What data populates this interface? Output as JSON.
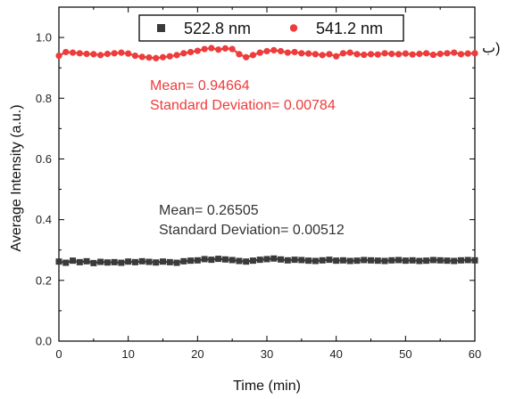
{
  "corner_label": "ب)",
  "chart_data": {
    "type": "scatter",
    "xlabel": "Time (min)",
    "ylabel": "Average Intensity (a.u.)",
    "xlim": [
      0,
      60
    ],
    "ylim": [
      0,
      1.1
    ],
    "xticks": [
      "0",
      "10",
      "20",
      "30",
      "40",
      "50",
      "60"
    ],
    "yticks": [
      "0.0",
      "0.2",
      "0.4",
      "0.6",
      "0.8",
      "1.0"
    ],
    "grid": false,
    "legend_position": "top-center",
    "series": [
      {
        "name": "522.8 nm",
        "marker": "square",
        "color": "#3a3a3a",
        "x": [
          0,
          1,
          2,
          3,
          4,
          5,
          6,
          7,
          8,
          9,
          10,
          11,
          12,
          13,
          14,
          15,
          16,
          17,
          18,
          19,
          20,
          21,
          22,
          23,
          24,
          25,
          26,
          27,
          28,
          29,
          30,
          31,
          32,
          33,
          34,
          35,
          36,
          37,
          38,
          39,
          40,
          41,
          42,
          43,
          44,
          45,
          46,
          47,
          48,
          49,
          50,
          51,
          52,
          53,
          54,
          55,
          56,
          57,
          58,
          59,
          60
        ],
        "y": [
          0.262,
          0.258,
          0.265,
          0.26,
          0.263,
          0.257,
          0.261,
          0.259,
          0.26,
          0.258,
          0.262,
          0.26,
          0.263,
          0.261,
          0.259,
          0.262,
          0.26,
          0.258,
          0.263,
          0.265,
          0.266,
          0.27,
          0.268,
          0.271,
          0.269,
          0.267,
          0.264,
          0.262,
          0.265,
          0.268,
          0.27,
          0.272,
          0.269,
          0.266,
          0.268,
          0.267,
          0.265,
          0.264,
          0.266,
          0.268,
          0.265,
          0.266,
          0.264,
          0.265,
          0.267,
          0.266,
          0.265,
          0.264,
          0.266,
          0.267,
          0.265,
          0.266,
          0.264,
          0.265,
          0.267,
          0.266,
          0.265,
          0.264,
          0.266,
          0.267,
          0.266
        ]
      },
      {
        "name": "541.2 nm",
        "marker": "circle",
        "color": "#ee3b3b",
        "x": [
          0,
          1,
          2,
          3,
          4,
          5,
          6,
          7,
          8,
          9,
          10,
          11,
          12,
          13,
          14,
          15,
          16,
          17,
          18,
          19,
          20,
          21,
          22,
          23,
          24,
          25,
          26,
          27,
          28,
          29,
          30,
          31,
          32,
          33,
          34,
          35,
          36,
          37,
          38,
          39,
          40,
          41,
          42,
          43,
          44,
          45,
          46,
          47,
          48,
          49,
          50,
          51,
          52,
          53,
          54,
          55,
          56,
          57,
          58,
          59,
          60
        ],
        "y": [
          0.94,
          0.952,
          0.95,
          0.948,
          0.946,
          0.945,
          0.942,
          0.946,
          0.948,
          0.95,
          0.947,
          0.94,
          0.936,
          0.934,
          0.932,
          0.935,
          0.938,
          0.942,
          0.948,
          0.952,
          0.956,
          0.962,
          0.965,
          0.96,
          0.964,
          0.962,
          0.945,
          0.935,
          0.942,
          0.95,
          0.955,
          0.958,
          0.955,
          0.95,
          0.952,
          0.948,
          0.947,
          0.945,
          0.942,
          0.945,
          0.938,
          0.948,
          0.95,
          0.945,
          0.943,
          0.945,
          0.944,
          0.948,
          0.946,
          0.945,
          0.947,
          0.944,
          0.946,
          0.948,
          0.943,
          0.946,
          0.948,
          0.95,
          0.945,
          0.947,
          0.948
        ]
      }
    ],
    "annotations": [
      {
        "text": "Mean= 0.94664",
        "color": "#ee3b3b"
      },
      {
        "text": "Standard Deviation= 0.00784",
        "color": "#ee3b3b"
      },
      {
        "text": "Mean= 0.26505",
        "color": "#333333"
      },
      {
        "text": "Standard Deviation= 0.00512",
        "color": "#333333"
      }
    ]
  }
}
